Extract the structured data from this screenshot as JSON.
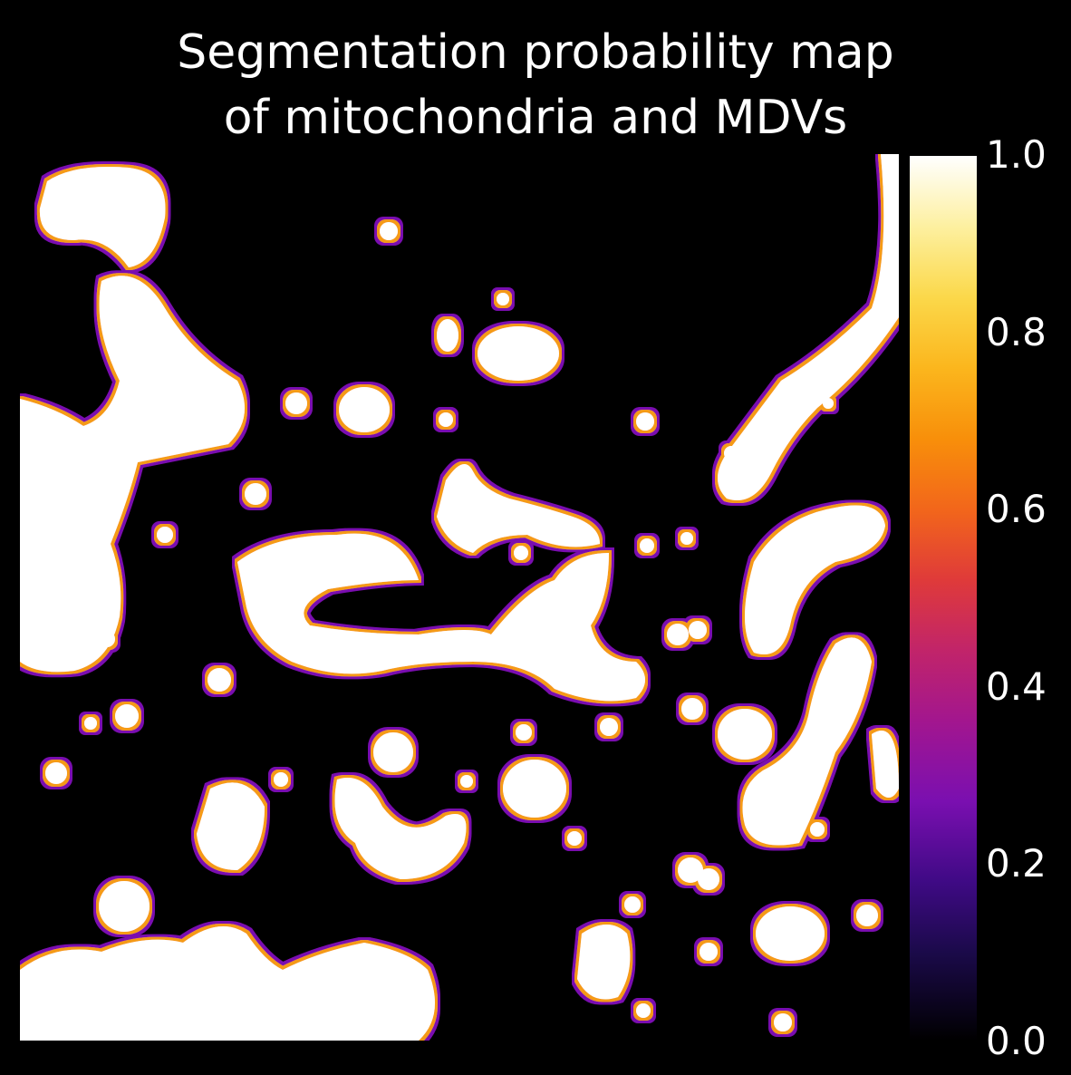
{
  "figure": {
    "title_line1": "Segmentation probability map",
    "title_line2": "of mitochondria and MDVs"
  },
  "colorbar": {
    "colormap": "gnuplot2-like (black-purple-orange-yellow-white)",
    "ticks": [
      "1.0",
      "0.8",
      "0.6",
      "0.4",
      "0.2",
      "0.0"
    ],
    "colors": {
      "low": "#000000",
      "edge": "#7a0fb0",
      "mid": "#f2661b",
      "high": "#ffffff"
    }
  }
}
